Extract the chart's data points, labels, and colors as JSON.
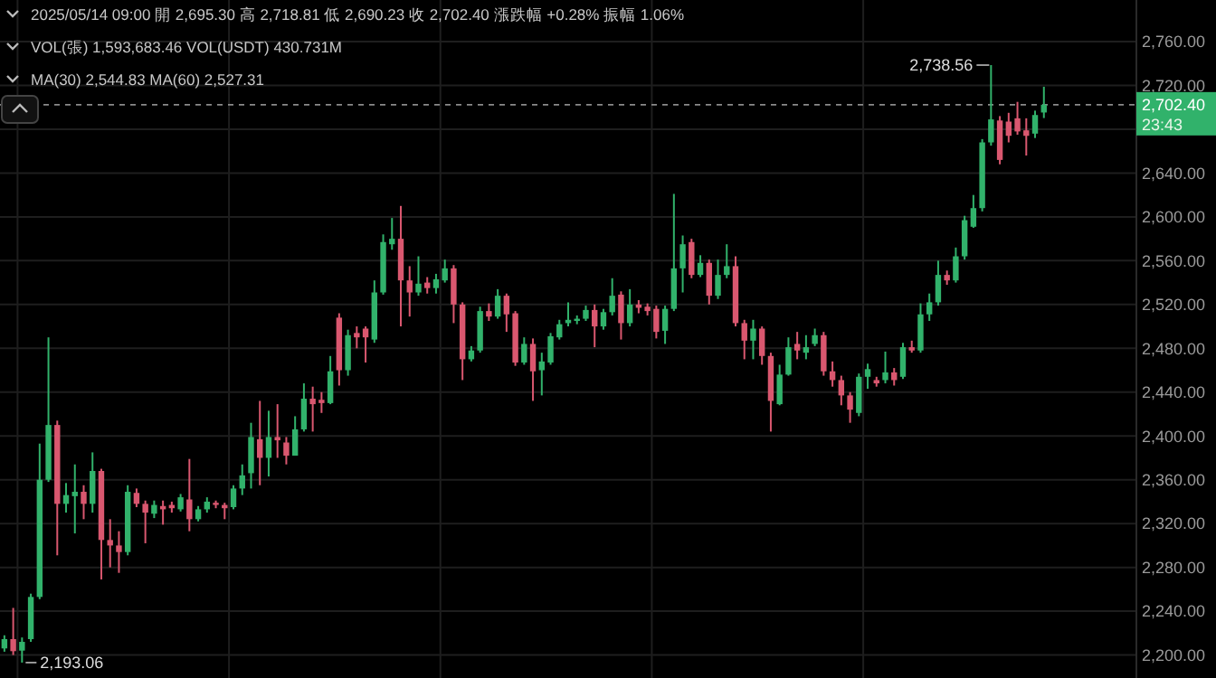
{
  "chart_data": {
    "type": "candlestick",
    "categories": [
      null,
      null,
      null,
      null,
      null,
      null,
      null,
      null,
      null,
      null,
      null,
      null,
      null,
      null,
      null,
      null,
      null,
      null,
      null,
      null,
      null,
      null,
      null,
      null,
      null,
      null,
      null,
      null,
      null,
      null,
      null,
      null,
      null,
      null,
      null,
      null,
      null,
      null,
      null,
      null,
      null,
      null,
      null,
      null,
      null,
      null,
      null,
      null,
      null,
      null,
      null,
      null,
      null,
      null,
      null,
      null,
      null,
      null,
      null,
      null,
      null,
      null,
      null,
      null,
      null,
      null,
      null,
      null,
      null,
      null,
      null,
      null,
      null,
      null,
      null,
      null,
      null,
      null,
      null,
      null,
      null,
      null,
      null,
      null,
      null,
      null,
      null,
      null,
      null,
      null,
      null,
      null,
      null,
      null,
      null,
      null,
      null,
      null,
      null,
      null,
      null,
      null,
      null,
      null,
      null,
      null,
      null,
      null,
      null,
      null,
      null,
      null,
      null,
      null,
      null,
      null,
      null,
      null,
      null,
      null,
      null,
      null,
      null,
      null,
      null,
      null,
      null,
      null,
      null
    ],
    "ohlc": [
      [
        2206,
        2218,
        2203,
        2214.5
      ],
      [
        2214.5,
        2243,
        2200,
        2203.5
      ],
      [
        2204,
        2216,
        2193.06,
        2212
      ],
      [
        2214.5,
        2256,
        2212,
        2253
      ],
      [
        2253,
        2393,
        2251,
        2360
      ],
      [
        2360,
        2490,
        2358,
        2410
      ],
      [
        2410,
        2414,
        2291,
        2338
      ],
      [
        2338,
        2357,
        2330,
        2346
      ],
      [
        2345,
        2374,
        2311,
        2349
      ],
      [
        2349,
        2355,
        2324,
        2338
      ],
      [
        2338,
        2385,
        2330,
        2368
      ],
      [
        2368,
        2370,
        2269,
        2305
      ],
      [
        2305,
        2324,
        2280,
        2300
      ],
      [
        2300,
        2313,
        2275,
        2294
      ],
      [
        2294,
        2355,
        2291,
        2349
      ],
      [
        2348,
        2352,
        2335,
        2338
      ],
      [
        2338,
        2341,
        2302,
        2330
      ],
      [
        2329,
        2341,
        2325,
        2337
      ],
      [
        2336,
        2341,
        2319,
        2333
      ],
      [
        2337,
        2340,
        2330,
        2334
      ],
      [
        2333,
        2347,
        2331,
        2344
      ],
      [
        2342,
        2379,
        2313,
        2324
      ],
      [
        2324,
        2336,
        2322,
        2333
      ],
      [
        2333,
        2344,
        2330,
        2340
      ],
      [
        2339,
        2341,
        2334,
        2337
      ],
      [
        2337,
        2339,
        2324,
        2334
      ],
      [
        2335,
        2355,
        2333,
        2352
      ],
      [
        2352,
        2374,
        2346,
        2364
      ],
      [
        2366,
        2412,
        2352,
        2399
      ],
      [
        2397,
        2432,
        2355,
        2380
      ],
      [
        2380,
        2423,
        2363,
        2399
      ],
      [
        2399,
        2429,
        2380,
        2396
      ],
      [
        2394,
        2399,
        2374,
        2382
      ],
      [
        2382,
        2418,
        2382,
        2406
      ],
      [
        2406,
        2448,
        2404,
        2434
      ],
      [
        2434,
        2445,
        2404,
        2429
      ],
      [
        2433,
        2440,
        2421,
        2430
      ],
      [
        2430,
        2473,
        2429,
        2459
      ],
      [
        2508,
        2512,
        2446,
        2460
      ],
      [
        2460,
        2497,
        2455,
        2492
      ],
      [
        2494,
        2500,
        2480,
        2490
      ],
      [
        2498,
        2500,
        2467,
        2490
      ],
      [
        2488,
        2542,
        2485,
        2531
      ],
      [
        2531,
        2584,
        2529,
        2577
      ],
      [
        2575,
        2599,
        2570,
        2580
      ],
      [
        2580,
        2610,
        2500,
        2542
      ],
      [
        2542,
        2555,
        2509,
        2531
      ],
      [
        2531,
        2564,
        2528,
        2539
      ],
      [
        2540,
        2545,
        2530,
        2535
      ],
      [
        2535,
        2548,
        2530,
        2543
      ],
      [
        2542,
        2561,
        2540,
        2553
      ],
      [
        2553,
        2556,
        2503,
        2520
      ],
      [
        2520,
        2522,
        2451,
        2470
      ],
      [
        2470,
        2482,
        2468,
        2478
      ],
      [
        2478,
        2518,
        2476,
        2514
      ],
      [
        2514,
        2521,
        2505,
        2509
      ],
      [
        2509,
        2534,
        2507,
        2528
      ],
      [
        2528,
        2530,
        2495,
        2511
      ],
      [
        2512,
        2514,
        2464,
        2467
      ],
      [
        2467,
        2490,
        2465,
        2484
      ],
      [
        2484,
        2489,
        2432,
        2459
      ],
      [
        2460,
        2476,
        2437,
        2468
      ],
      [
        2467,
        2494,
        2465,
        2491
      ],
      [
        2490,
        2506,
        2488,
        2502
      ],
      [
        2503,
        2522,
        2500,
        2506
      ],
      [
        2505,
        2510,
        2502,
        2507
      ],
      [
        2507,
        2519,
        2505,
        2515
      ],
      [
        2515,
        2520,
        2481,
        2500
      ],
      [
        2500,
        2516,
        2497,
        2513
      ],
      [
        2513,
        2544,
        2510,
        2528
      ],
      [
        2529,
        2532,
        2488,
        2503
      ],
      [
        2503,
        2534,
        2500,
        2520
      ],
      [
        2520,
        2524,
        2512,
        2517
      ],
      [
        2518,
        2521,
        2510,
        2514
      ],
      [
        2516,
        2519,
        2489,
        2495
      ],
      [
        2496,
        2519,
        2484,
        2516
      ],
      [
        2516,
        2621,
        2514,
        2553
      ],
      [
        2553,
        2583,
        2531,
        2575
      ],
      [
        2577,
        2580,
        2544,
        2547
      ],
      [
        2547,
        2565,
        2545,
        2558
      ],
      [
        2558,
        2561,
        2520,
        2528
      ],
      [
        2528,
        2561,
        2525,
        2547
      ],
      [
        2547,
        2575,
        2544,
        2555
      ],
      [
        2555,
        2564,
        2500,
        2503
      ],
      [
        2503,
        2506,
        2470,
        2487
      ],
      [
        2487,
        2506,
        2470,
        2498
      ],
      [
        2498,
        2500,
        2465,
        2473
      ],
      [
        2473,
        2476,
        2404,
        2432
      ],
      [
        2429,
        2465,
        2428,
        2456
      ],
      [
        2456,
        2490,
        2455,
        2481
      ],
      [
        2484,
        2495,
        2470,
        2478
      ],
      [
        2476,
        2492,
        2470,
        2481
      ],
      [
        2484,
        2498,
        2482,
        2492
      ],
      [
        2492,
        2495,
        2455,
        2459
      ],
      [
        2459,
        2468,
        2445,
        2451
      ],
      [
        2451,
        2455,
        2428,
        2437
      ],
      [
        2437,
        2440,
        2412,
        2424
      ],
      [
        2421,
        2457,
        2418,
        2454
      ],
      [
        2454,
        2466,
        2443,
        2461
      ],
      [
        2451,
        2454,
        2445,
        2448
      ],
      [
        2451,
        2477,
        2448,
        2458
      ],
      [
        2458,
        2462,
        2446,
        2451
      ],
      [
        2454,
        2485,
        2452,
        2481
      ],
      [
        2481,
        2487,
        2476,
        2478
      ],
      [
        2478,
        2521,
        2476,
        2511
      ],
      [
        2511,
        2530,
        2505,
        2522
      ],
      [
        2522,
        2560,
        2519,
        2547
      ],
      [
        2547,
        2551,
        2538,
        2542
      ],
      [
        2542,
        2572,
        2540,
        2564
      ],
      [
        2564,
        2601,
        2561,
        2597
      ],
      [
        2591,
        2620,
        2590,
        2608
      ],
      [
        2608,
        2671,
        2605,
        2668
      ],
      [
        2668,
        2738.56,
        2665,
        2689
      ],
      [
        2688,
        2692,
        2648,
        2652
      ],
      [
        2687,
        2695,
        2668,
        2674
      ],
      [
        2690,
        2705,
        2675,
        2678
      ],
      [
        2679,
        2690,
        2656,
        2674
      ],
      [
        2676,
        2697,
        2672,
        2693
      ],
      [
        2695.3,
        2718.81,
        2690.23,
        2702.4
      ],
      null,
      null,
      null,
      null,
      null,
      null,
      null,
      null,
      null,
      null
    ],
    "colors": [
      "#31b26b",
      "#d9576f",
      "#31b26b",
      "#31b26b",
      "#31b26b",
      "#31b26b",
      "#d9576f",
      "#31b26b",
      "#31b26b",
      "#d9576f",
      "#31b26b",
      "#d9576f",
      "#d9576f",
      "#d9576f",
      "#31b26b",
      "#d9576f",
      "#d9576f",
      "#31b26b",
      "#d9576f",
      "#d9576f",
      "#31b26b",
      "#d9576f",
      "#31b26b",
      "#31b26b",
      "#d9576f",
      "#d9576f",
      "#31b26b",
      "#31b26b",
      "#31b26b",
      "#d9576f",
      "#31b26b",
      "#d9576f",
      "#d9576f",
      "#31b26b",
      "#31b26b",
      "#d9576f",
      "#d9576f",
      "#31b26b",
      "#d9576f",
      "#31b26b",
      "#d9576f",
      "#d9576f",
      "#31b26b",
      "#31b26b",
      "#31b26b",
      "#d9576f",
      "#d9576f",
      "#31b26b",
      "#d9576f",
      "#31b26b",
      "#31b26b",
      "#d9576f",
      "#d9576f",
      "#31b26b",
      "#31b26b",
      "#d9576f",
      "#31b26b",
      "#d9576f",
      "#d9576f",
      "#31b26b",
      "#d9576f",
      "#31b26b",
      "#31b26b",
      "#31b26b",
      "#31b26b",
      "#31b26b",
      "#31b26b",
      "#d9576f",
      "#31b26b",
      "#31b26b",
      "#d9576f",
      "#31b26b",
      "#d9576f",
      "#d9576f",
      "#d9576f",
      "#31b26b",
      "#31b26b",
      "#31b26b",
      "#d9576f",
      "#31b26b",
      "#d9576f",
      "#31b26b",
      "#31b26b",
      "#d9576f",
      "#d9576f",
      "#31b26b",
      "#d9576f",
      "#d9576f",
      "#31b26b",
      "#31b26b",
      "#d9576f",
      "#31b26b",
      "#31b26b",
      "#d9576f",
      "#d9576f",
      "#d9576f",
      "#d9576f",
      "#31b26b",
      "#31b26b",
      "#d9576f",
      "#31b26b",
      "#d9576f",
      "#31b26b",
      "#d9576f",
      "#31b26b",
      "#31b26b",
      "#31b26b",
      "#d9576f",
      "#31b26b",
      "#31b26b",
      "#31b26b",
      "#31b26b",
      "#31b26b",
      "#d9576f",
      "#d9576f",
      "#d9576f",
      "#d9576f",
      "#31b26b",
      "#31b26b",
      null,
      null,
      null,
      null,
      null,
      null,
      null,
      null,
      null,
      null
    ],
    "ylim": [
      2179,
      2798
    ],
    "yticks": [
      {
        "value": 2200,
        "label": "2,200.00"
      },
      {
        "value": 2240,
        "label": "2,240.00"
      },
      {
        "value": 2280,
        "label": "2,280.00"
      },
      {
        "value": 2320,
        "label": "2,320.00"
      },
      {
        "value": 2360,
        "label": "2,360.00"
      },
      {
        "value": 2400,
        "label": "2,400.00"
      },
      {
        "value": 2440,
        "label": "2,440.00"
      },
      {
        "value": 2480,
        "label": "2,480.00"
      },
      {
        "value": 2520,
        "label": "2,520.00"
      },
      {
        "value": 2560,
        "label": "2,560.00"
      },
      {
        "value": 2600,
        "label": "2,600.00"
      },
      {
        "value": 2640,
        "label": "2,640.00"
      },
      {
        "value": 2680,
        "label": null
      },
      {
        "value": 2720,
        "label": "2,720.00"
      },
      {
        "value": 2760,
        "label": "2,760.00"
      }
    ],
    "grid": true,
    "ref_lines": [
      {
        "axis": "y",
        "value": 2702.4,
        "label": "2,702.40",
        "color": "#8a8a8a",
        "line_style": "dashed"
      }
    ],
    "annotations": [
      "2025/05/14 09:00 開 2,695.30 高 2,718.81 低 2,690.23 收 2,702.40 漲跌幅 +0.28% 振幅 1.06%",
      "VOL(張) 1,593,683.46 VOL(USDT) 430.731M",
      "MA(30) 2,544.83 MA(60) 2,527.31",
      "2,738.56",
      "2,193.06",
      "23:43"
    ]
  }
}
